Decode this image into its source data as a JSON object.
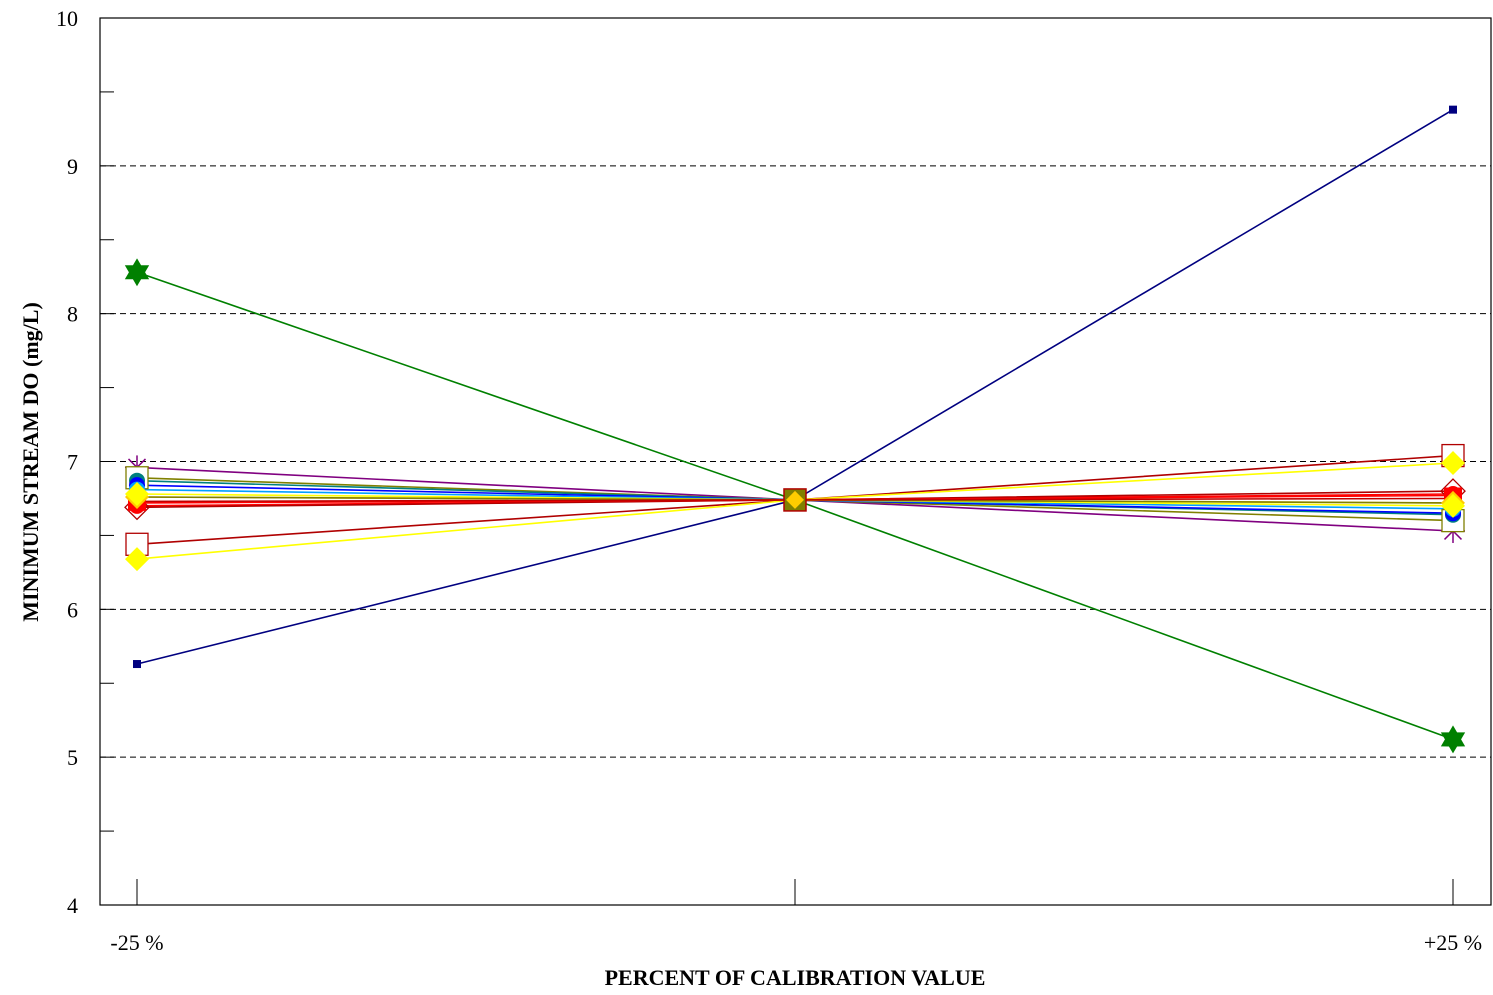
{
  "chart_data": {
    "type": "line",
    "title": "",
    "xlabel": "PERCENT OF CALIBRATION VALUE",
    "ylabel": "MINIMUM STREAM DO (mg/L)",
    "x_tick_labels": [
      "-25 %",
      "",
      "+25 %"
    ],
    "x": [
      -25,
      0,
      25
    ],
    "ylim": [
      4,
      10
    ],
    "yticks": [
      4,
      5,
      6,
      7,
      8,
      9,
      10
    ],
    "grid": "horizontal-dashed",
    "legend": "none",
    "series": [
      {
        "color": "#000080",
        "marker": "small-square",
        "values": [
          5.63,
          6.74,
          9.38
        ]
      },
      {
        "color": "#008000",
        "marker": "star",
        "values": [
          8.28,
          6.74,
          5.12
        ]
      },
      {
        "color": "#800080",
        "marker": "asterisk",
        "values": [
          6.96,
          6.74,
          6.53
        ]
      },
      {
        "color": "#b00000",
        "marker": "open-square",
        "values": [
          6.44,
          6.74,
          7.04
        ]
      },
      {
        "color": "#ffff00",
        "marker": "diamond",
        "values": [
          6.34,
          6.74,
          6.99
        ]
      },
      {
        "color": "#808000",
        "marker": "open-square",
        "values": [
          6.89,
          6.74,
          6.6
        ]
      },
      {
        "color": "#008080",
        "marker": "filled-circle",
        "values": [
          6.87,
          6.74,
          6.64
        ]
      },
      {
        "color": "#0000ff",
        "marker": "filled-circle",
        "values": [
          6.84,
          6.74,
          6.65
        ]
      },
      {
        "color": "#00a0ff",
        "marker": "filled-circle",
        "values": [
          6.81,
          6.74,
          6.68
        ]
      },
      {
        "color": "#ff0000",
        "marker": "filled-circle",
        "values": [
          6.7,
          6.74,
          6.78
        ]
      },
      {
        "color": "#b00000",
        "marker": "open-diamond",
        "values": [
          6.69,
          6.74,
          6.8
        ]
      },
      {
        "color": "#ff0000",
        "marker": "filled-square",
        "values": [
          6.72,
          6.74,
          6.77
        ]
      },
      {
        "color": "#ffcc00",
        "marker": "diamond",
        "values": [
          6.76,
          6.74,
          6.72
        ]
      },
      {
        "color": "#ffff00",
        "marker": "diamond",
        "values": [
          6.78,
          6.74,
          6.7
        ]
      },
      {
        "color": "#808000",
        "marker": "none",
        "values": [
          6.76,
          6.74,
          6.72
        ]
      },
      {
        "color": "#c00000",
        "marker": "none",
        "values": [
          6.73,
          6.74,
          6.75
        ]
      }
    ],
    "center_marker": {
      "x": 0,
      "y": 6.74,
      "fill": "#808000",
      "stroke": "#b00000",
      "inner_fill": "#ffcc00"
    }
  }
}
